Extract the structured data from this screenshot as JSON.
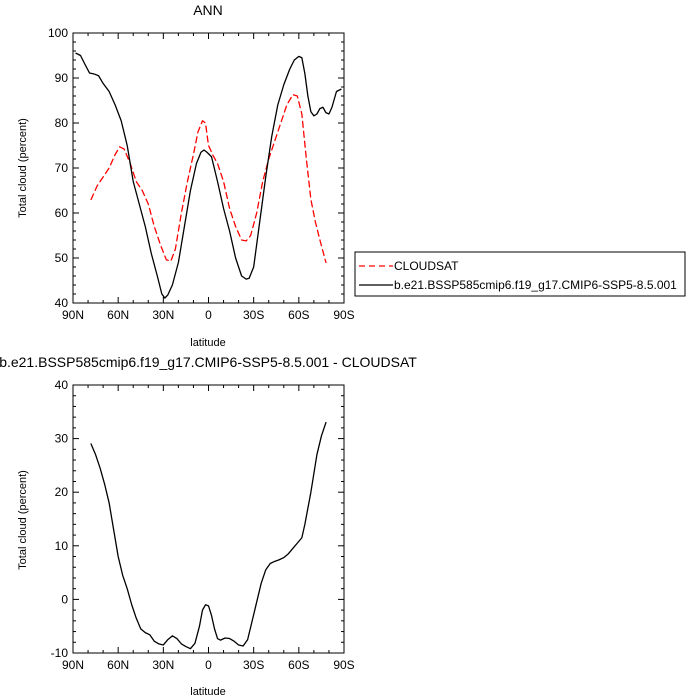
{
  "chart_data": [
    {
      "type": "line",
      "title": "ANN",
      "xlabel": "latitude",
      "ylabel": "Total cloud (percent)",
      "xlim": [
        -90,
        90
      ],
      "ylim": [
        40,
        100
      ],
      "x_ticks": [
        -90,
        -60,
        -30,
        0,
        30,
        60,
        90
      ],
      "x_tick_labels": [
        "90N",
        "60N",
        "30N",
        "0",
        "30S",
        "60S",
        "90S"
      ],
      "y_ticks": [
        40,
        50,
        60,
        70,
        80,
        90,
        100
      ],
      "y_tick_labels": [
        "40",
        "50",
        "60",
        "70",
        "80",
        "90",
        "100"
      ],
      "legend": "outside-right",
      "series": [
        {
          "name": "CLOUDSAT",
          "color": "#ff0000",
          "dash": "dashed",
          "x": [
            -78,
            -74,
            -70,
            -66,
            -62,
            -59,
            -56,
            -52,
            -48,
            -44,
            -40,
            -36,
            -32,
            -28,
            -25,
            -22,
            -18,
            -14,
            -10,
            -7,
            -4,
            -2,
            0,
            3,
            6,
            10,
            14,
            18,
            22,
            25,
            28,
            32,
            36,
            40,
            44,
            48,
            52,
            56,
            59,
            62,
            65,
            68,
            71,
            74,
            78
          ],
          "y": [
            63,
            66,
            68,
            70,
            73,
            74.7,
            74.2,
            71,
            67,
            65,
            62,
            57,
            53,
            49.6,
            49.3,
            52,
            60,
            67,
            73,
            78,
            80.5,
            80,
            75,
            72.8,
            71,
            67,
            61,
            57,
            54,
            53.8,
            55,
            60,
            67,
            72,
            76,
            80,
            84,
            86.3,
            86,
            82,
            72,
            63,
            58,
            54,
            49
          ]
        },
        {
          "name": "b.e21.BSSP585cmip6.f19_g17.CMIP6-SSP5-8.5.001",
          "color": "#000000",
          "dash": "solid",
          "x": [
            -88,
            -85,
            -82,
            -79,
            -76,
            -73,
            -70,
            -66,
            -62,
            -58,
            -54,
            -50,
            -46,
            -42,
            -38,
            -34,
            -31,
            -29,
            -27,
            -24,
            -20,
            -16,
            -12,
            -8,
            -5,
            -3,
            -1,
            2,
            6,
            10,
            14,
            18,
            22,
            25,
            27,
            30,
            34,
            38,
            42,
            46,
            50,
            54,
            57,
            60,
            62,
            64,
            66,
            68,
            70,
            72,
            74,
            76,
            78,
            80,
            82,
            85,
            88
          ],
          "y": [
            95.5,
            95,
            93,
            91.1,
            90.9,
            90.5,
            88.8,
            87,
            84,
            80.5,
            75,
            67,
            62,
            57,
            51,
            46,
            42,
            41.1,
            41.8,
            44,
            49,
            57,
            65,
            71,
            73.5,
            74,
            73.5,
            72.5,
            67,
            61,
            56,
            50,
            46,
            45.3,
            45.5,
            48,
            58,
            68,
            77,
            84,
            88.5,
            92,
            94,
            94.8,
            94.5,
            91,
            86,
            82.5,
            81.6,
            82,
            83.2,
            83.5,
            82.3,
            82,
            83.5,
            87,
            87.5
          ]
        }
      ]
    },
    {
      "type": "line",
      "title": "b.e21.BSSP585cmip6.f19_g17.CMIP6-SSP5-8.5.001 - CLOUDSAT",
      "xlabel": "latitude",
      "ylabel": "Total cloud (percent)",
      "xlim": [
        -90,
        90
      ],
      "ylim": [
        -10,
        40
      ],
      "x_ticks": [
        -90,
        -60,
        -30,
        0,
        30,
        60,
        90
      ],
      "x_tick_labels": [
        "90N",
        "60N",
        "30N",
        "0",
        "30S",
        "60S",
        "90S"
      ],
      "y_ticks": [
        -10,
        0,
        10,
        20,
        30,
        40
      ],
      "y_tick_labels": [
        "-10",
        "0",
        "10",
        "20",
        "30",
        "40"
      ],
      "series": [
        {
          "color": "#000000",
          "dash": "solid",
          "x": [
            -78,
            -75,
            -72,
            -69,
            -66,
            -63,
            -60,
            -57,
            -54,
            -51,
            -48,
            -45,
            -42,
            -39,
            -36,
            -33,
            -30,
            -27,
            -24,
            -21,
            -18,
            -15,
            -12,
            -9,
            -6,
            -4,
            -2,
            0,
            2,
            4,
            6,
            8,
            11,
            14,
            17,
            20,
            23,
            26,
            29,
            32,
            35,
            38,
            41,
            44,
            47,
            50,
            53,
            56,
            59,
            62,
            64,
            66,
            68,
            70,
            72,
            75,
            78
          ],
          "y": [
            29,
            27,
            24.5,
            21.5,
            18,
            13,
            8,
            4.5,
            2,
            -1,
            -3.5,
            -5.5,
            -6.2,
            -6.6,
            -7.8,
            -8.3,
            -8.5,
            -7.5,
            -6.8,
            -7.3,
            -8.3,
            -8.8,
            -9.2,
            -8.2,
            -5,
            -2,
            -1,
            -1.2,
            -3,
            -5.5,
            -7.3,
            -7.6,
            -7.2,
            -7.3,
            -7.8,
            -8.5,
            -8.7,
            -7.5,
            -4,
            -0.5,
            3,
            5.5,
            6.7,
            7.1,
            7.4,
            7.8,
            8.5,
            9.5,
            10.5,
            11.5,
            14,
            17,
            20,
            23.5,
            27,
            30.5,
            33
          ]
        }
      ]
    }
  ]
}
